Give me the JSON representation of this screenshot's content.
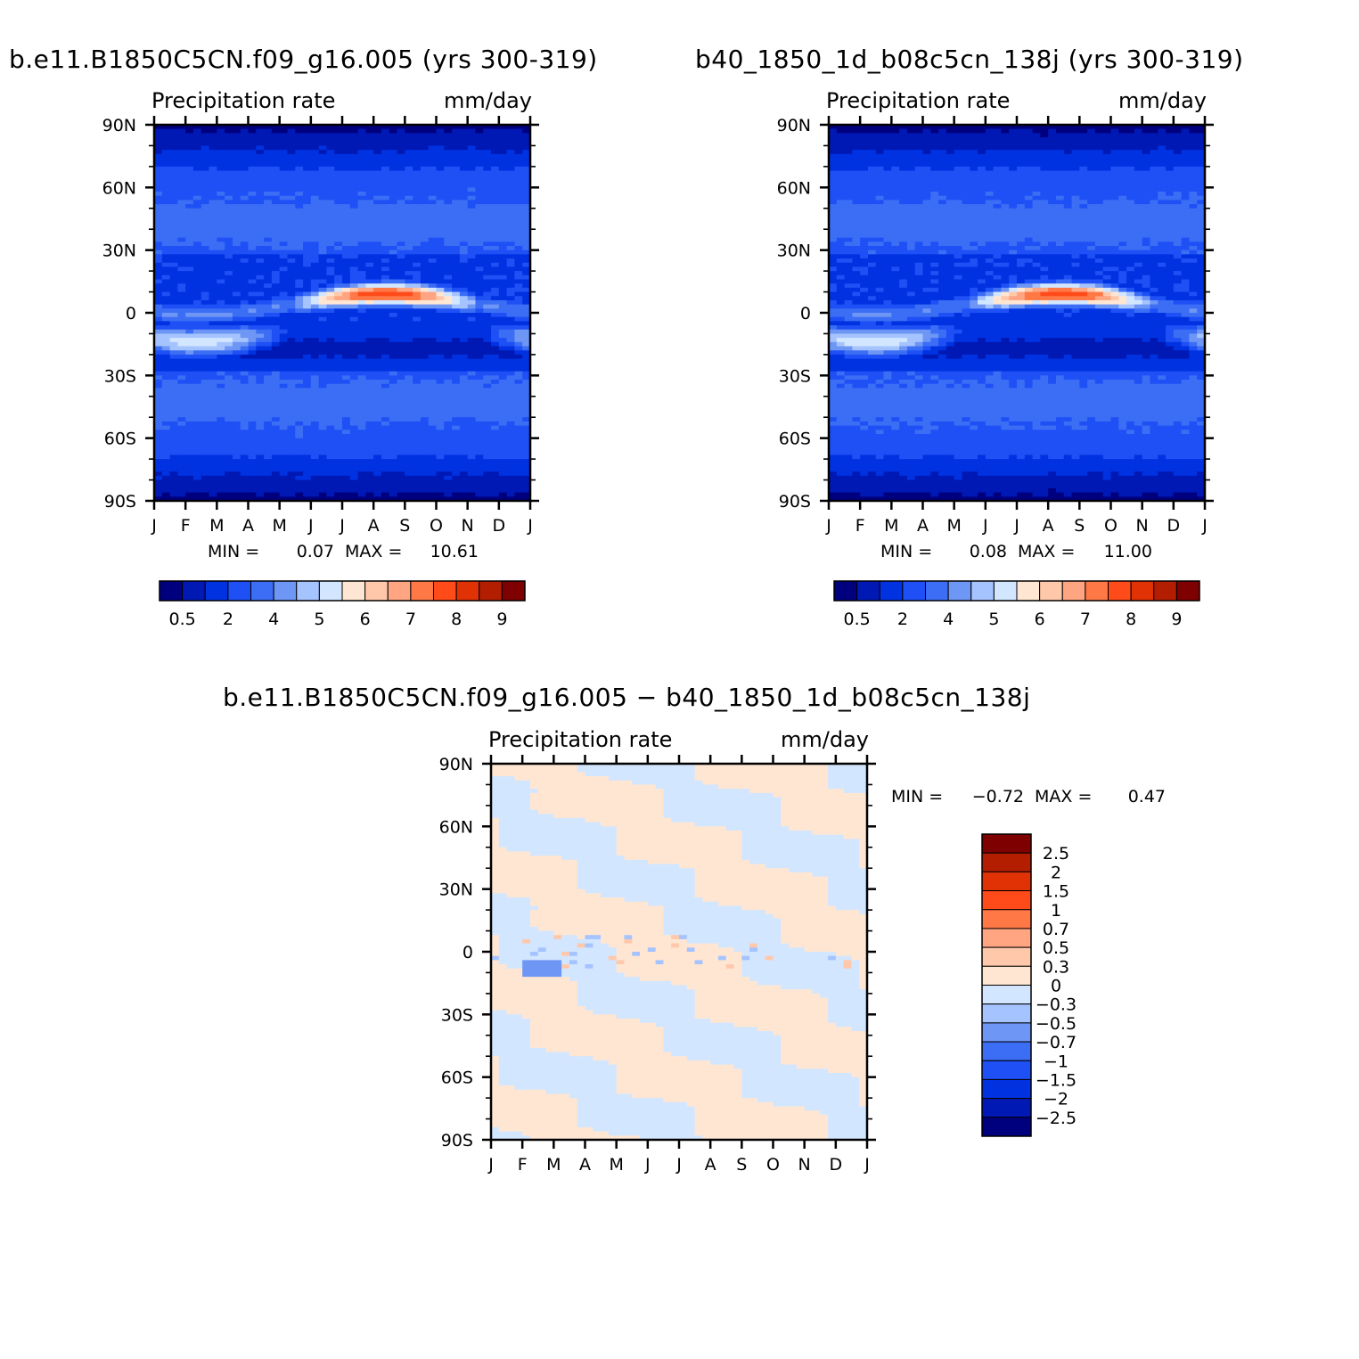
{
  "chart_data": [
    {
      "type": "heatmap",
      "title": "b.e11.B1850C5CN.f09_g16.005 (yrs 300-319)",
      "left_label": "Precipitation rate",
      "right_label": "mm/day",
      "x_ticks": [
        "J",
        "F",
        "M",
        "A",
        "M",
        "J",
        "J",
        "A",
        "S",
        "O",
        "N",
        "D",
        "J"
      ],
      "y_ticks": [
        "90N",
        "60N",
        "30N",
        "0",
        "30S",
        "60S",
        "90S"
      ],
      "ylim": [
        -90,
        90
      ],
      "min_label": "MIN =",
      "min_value": "0.07",
      "max_label": "MAX =",
      "max_value": "10.61",
      "colorbar_ticks": [
        "0.5",
        "2",
        "4",
        "5",
        "6",
        "7",
        "8",
        "9"
      ],
      "colors": [
        "#00007f",
        "#0019b4",
        "#0032e1",
        "#1e50f5",
        "#3c6ef5",
        "#6e96f5",
        "#a5c3ff",
        "#d2e6ff",
        "#ffe6d2",
        "#ffc8aa",
        "#ffa582",
        "#ff7846",
        "#ff4b19",
        "#e13205",
        "#b41e00",
        "#7f0000"
      ]
    },
    {
      "type": "heatmap",
      "title": "b40_1850_1d_b08c5cn_138j (yrs 300-319)",
      "left_label": "Precipitation rate",
      "right_label": "mm/day",
      "x_ticks": [
        "J",
        "F",
        "M",
        "A",
        "M",
        "J",
        "J",
        "A",
        "S",
        "O",
        "N",
        "D",
        "J"
      ],
      "y_ticks": [
        "90N",
        "60N",
        "30N",
        "0",
        "30S",
        "60S",
        "90S"
      ],
      "ylim": [
        -90,
        90
      ],
      "min_label": "MIN =",
      "min_value": "0.08",
      "max_label": "MAX =",
      "max_value": "11.00",
      "colorbar_ticks": [
        "0.5",
        "2",
        "4",
        "5",
        "6",
        "7",
        "8",
        "9"
      ],
      "colors": [
        "#00007f",
        "#0019b4",
        "#0032e1",
        "#1e50f5",
        "#3c6ef5",
        "#6e96f5",
        "#a5c3ff",
        "#d2e6ff",
        "#ffe6d2",
        "#ffc8aa",
        "#ffa582",
        "#ff7846",
        "#ff4b19",
        "#e13205",
        "#b41e00",
        "#7f0000"
      ]
    },
    {
      "type": "heatmap",
      "title": "b.e11.B1850C5CN.f09_g16.005 − b40_1850_1d_b08c5cn_138j",
      "left_label": "Precipitation rate",
      "right_label": "mm/day",
      "x_ticks": [
        "J",
        "F",
        "M",
        "A",
        "M",
        "J",
        "J",
        "A",
        "S",
        "O",
        "N",
        "D",
        "J"
      ],
      "y_ticks": [
        "90N",
        "60N",
        "30N",
        "0",
        "30S",
        "60S",
        "90S"
      ],
      "ylim": [
        -90,
        90
      ],
      "min_label": "MIN =",
      "min_value": "−0.72",
      "max_label": "MAX =",
      "max_value": "0.47",
      "colorbar_ticks": [
        "2.5",
        "2",
        "1.5",
        "1",
        "0.7",
        "0.5",
        "0.3",
        "0",
        "−0.3",
        "−0.5",
        "−0.7",
        "−1",
        "−1.5",
        "−2",
        "−2.5"
      ],
      "colors": [
        "#7f0000",
        "#b41e00",
        "#e13205",
        "#ff4b19",
        "#ff7846",
        "#ffa582",
        "#ffc8aa",
        "#ffe6d2",
        "#d2e6ff",
        "#a5c3ff",
        "#6e96f5",
        "#3c6ef5",
        "#1e50f5",
        "#0032e1",
        "#0019b4",
        "#00007f"
      ]
    }
  ]
}
